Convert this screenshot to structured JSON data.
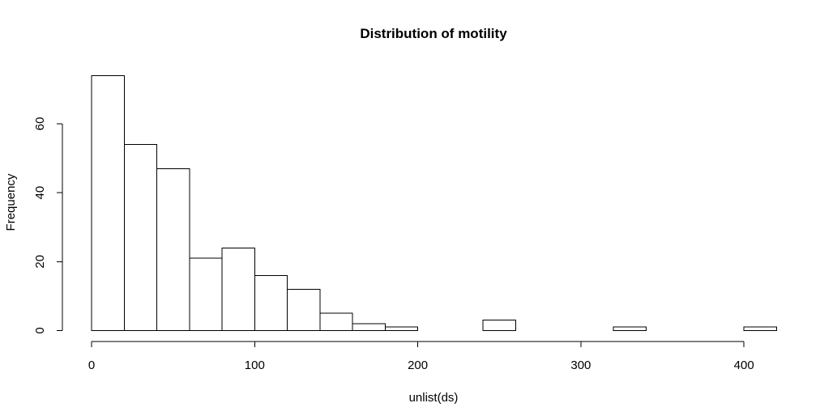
{
  "chart_data": {
    "type": "bar",
    "title": "Distribution of motility",
    "xlabel": "unlist(ds)",
    "ylabel": "Frequency",
    "bin_edges": [
      0,
      20,
      40,
      60,
      80,
      100,
      120,
      140,
      160,
      180,
      200,
      220,
      240,
      260,
      280,
      300,
      320,
      340,
      360,
      380,
      400,
      420
    ],
    "values": [
      74,
      54,
      47,
      21,
      24,
      16,
      12,
      5,
      2,
      1,
      0,
      0,
      3,
      0,
      0,
      0,
      1,
      0,
      0,
      0,
      1
    ],
    "xlim": [
      0,
      420
    ],
    "ylim": [
      0,
      74
    ],
    "x_ticks": [
      0,
      100,
      200,
      300,
      400
    ],
    "y_ticks": [
      0,
      20,
      40,
      60
    ],
    "grid": false,
    "colors": {
      "bar_fill": "#ffffff",
      "bar_stroke": "#000000"
    }
  }
}
